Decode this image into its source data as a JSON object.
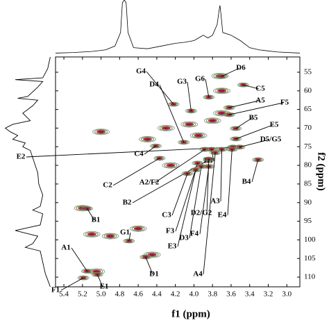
{
  "chart_data": {
    "type": "contour",
    "x_label": "f1 (ppm)",
    "y_label": "f2 (ppm)",
    "xlim": [
      5.49,
      2.86
    ],
    "ylim": [
      50.9,
      112.6
    ],
    "xticks": [
      {
        "value": 5.4,
        "label": "5.4"
      },
      {
        "value": 5.2,
        "label": "5.2"
      },
      {
        "value": 5.0,
        "label": "5.0"
      },
      {
        "value": 4.8,
        "label": "4.8"
      },
      {
        "value": 4.6,
        "label": "4.6"
      },
      {
        "value": 4.4,
        "label": "4.4"
      },
      {
        "value": 4.2,
        "label": "4.2"
      },
      {
        "value": 4.0,
        "label": "4.0"
      },
      {
        "value": 3.8,
        "label": "3.8"
      },
      {
        "value": 3.6,
        "label": "3.6"
      },
      {
        "value": 3.4,
        "label": "3.4"
      },
      {
        "value": 3.2,
        "label": "3.2"
      },
      {
        "value": 3.0,
        "label": "3.0"
      }
    ],
    "yticks": [
      55,
      60,
      65,
      70,
      75,
      80,
      85,
      90,
      95,
      100,
      105,
      110
    ],
    "annotations": [
      {
        "text": "G4",
        "x": 4.22,
        "y": 63.6
      },
      {
        "text": "D4",
        "x": 4.11,
        "y": 73.8
      },
      {
        "text": "G3",
        "x": 4.03,
        "y": 65.4
      },
      {
        "text": "G6",
        "x": 3.84,
        "y": 61.7
      },
      {
        "text": "D6",
        "x": 3.7,
        "y": 56.1
      },
      {
        "text": "C5",
        "x": 3.47,
        "y": 58.4
      },
      {
        "text": "A5",
        "x": 3.62,
        "y": 64.5
      },
      {
        "text": "F5",
        "x": 3.62,
        "y": 66.4
      },
      {
        "text": "B5",
        "x": 3.55,
        "y": 70.1
      },
      {
        "text": "E5",
        "x": 3.55,
        "y": 72.9
      },
      {
        "text": "D5/G5",
        "x": 3.51,
        "y": 75.1
      },
      {
        "text": "E2",
        "x": 3.58,
        "y": 75.1
      },
      {
        "text": "C4",
        "x": 4.41,
        "y": 74.8
      },
      {
        "text": "C2",
        "x": 4.37,
        "y": 78.1
      },
      {
        "text": "A2/F2",
        "x": 3.88,
        "y": 75.7
      },
      {
        "text": "B2",
        "x": 3.84,
        "y": 78.5
      },
      {
        "text": "B3",
        "x": 3.81,
        "y": 75.7
      },
      {
        "text": "B4",
        "x": 3.31,
        "y": 78.5
      },
      {
        "text": "C3",
        "x": 4.07,
        "y": 82.2
      },
      {
        "text": "F3",
        "x": 3.96,
        "y": 79.4
      },
      {
        "text": "D3",
        "x": 3.92,
        "y": 80.3
      },
      {
        "text": "E3",
        "x": 3.98,
        "y": 81.2
      },
      {
        "text": "F4",
        "x": 3.84,
        "y": 80.3
      },
      {
        "text": "D2/G2",
        "x": 3.84,
        "y": 78.3
      },
      {
        "text": "A3",
        "x": 3.7,
        "y": 75.7
      },
      {
        "text": "E4",
        "x": 3.59,
        "y": 75.7
      },
      {
        "text": "A4",
        "x": 3.77,
        "y": 76.6
      },
      {
        "text": "B1",
        "x": 5.15,
        "y": 91.6
      },
      {
        "text": "G1",
        "x": 4.7,
        "y": 100.3
      },
      {
        "text": "A1",
        "x": 5.15,
        "y": 108.4
      },
      {
        "text": "F1",
        "x": 5.19,
        "y": 110.2
      },
      {
        "text": "E1",
        "x": 5.04,
        "y": 109.3
      },
      {
        "text": "D1",
        "x": 4.52,
        "y": 104.6
      }
    ],
    "peaks": {
      "x": [
        4.05,
        3.8,
        3.7,
        4.5,
        5.0,
        4.25,
        5.2,
        5.1,
        4.9,
        4.6,
        4.45,
        3.7,
        3.72,
        5.05,
        4.3,
        3.95
      ],
      "y": [
        69,
        68,
        66,
        73,
        71,
        80,
        91.5,
        98.5,
        99,
        97,
        104,
        60,
        56,
        108.5,
        70,
        72
      ]
    },
    "f1_projection": {
      "x": [
        5.49,
        5.3,
        5.1,
        4.95,
        4.85,
        4.79,
        4.77,
        4.75,
        4.73,
        4.71,
        4.65,
        4.5,
        4.35,
        4.2,
        4.1,
        4.0,
        3.95,
        3.9,
        3.85,
        3.8,
        3.75,
        3.73,
        3.72,
        3.71,
        3.69,
        3.6,
        3.55,
        3.5,
        3.4,
        3.3,
        3.1,
        2.86
      ],
      "values": [
        2,
        3,
        5,
        8,
        15,
        40,
        95,
        100,
        95,
        40,
        12,
        10,
        15,
        20,
        22,
        25,
        30,
        35,
        30,
        35,
        55,
        80,
        90,
        75,
        40,
        35,
        30,
        25,
        12,
        8,
        4,
        2
      ]
    },
    "f2_projection": {
      "y": [
        50.9,
        54,
        56.5,
        57,
        57.5,
        59,
        61.5,
        62,
        62.5,
        64,
        66,
        68,
        69,
        70,
        71,
        72,
        73,
        74,
        75,
        76,
        78,
        80,
        82,
        85,
        88,
        91,
        92,
        93,
        96,
        97.5,
        98,
        99,
        101,
        102,
        103,
        106,
        109,
        112.6
      ],
      "values": [
        5,
        10,
        20,
        75,
        20,
        30,
        50,
        70,
        30,
        40,
        60,
        45,
        80,
        95,
        85,
        70,
        80,
        55,
        60,
        45,
        40,
        35,
        30,
        28,
        20,
        25,
        40,
        20,
        25,
        75,
        60,
        30,
        40,
        55,
        25,
        20,
        15,
        5
      ]
    }
  }
}
